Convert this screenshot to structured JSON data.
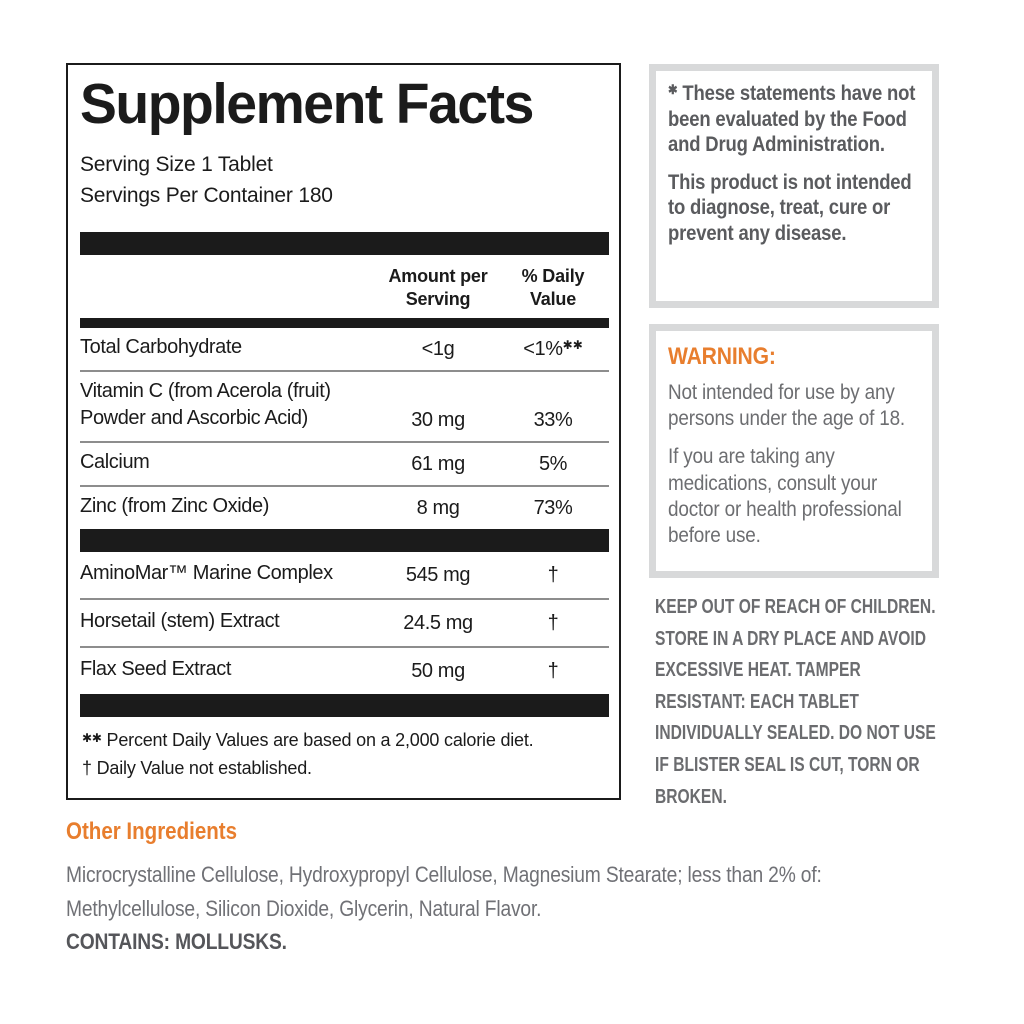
{
  "colors": {
    "accent_orange": "#E87E2E",
    "body_gray": "#6D6E71",
    "bold_gray": "#58595B",
    "table_black": "#1B1B1B",
    "panel_border_gray": "#D8D9DA",
    "row_separator_gray": "#8D8D8D"
  },
  "facts": {
    "title": "Supplement Facts",
    "serving_size": "Serving Size 1 Tablet",
    "servings_per_container": "Servings Per Container 180",
    "headers": {
      "amount": "Amount per Serving",
      "dv": "% Daily Value"
    },
    "rows_top": [
      {
        "name": "Total Carbohydrate",
        "amount": "<1g",
        "dv": "<1%",
        "dv_mark": "✱✱"
      },
      {
        "name": "Vitamin C (from Acerola (fruit) Powder and Ascorbic Acid)",
        "amount": "30 mg",
        "dv": "33%"
      },
      {
        "name": "Calcium",
        "amount": "61 mg",
        "dv": "5%"
      },
      {
        "name": "Zinc (from Zinc Oxide)",
        "amount": "8 mg",
        "dv": "73%"
      }
    ],
    "rows_bottom": [
      {
        "name": "AminoMar™ Marine Complex",
        "amount": "545 mg",
        "dv": "†"
      },
      {
        "name": "Horsetail (stem) Extract",
        "amount": "24.5 mg",
        "dv": "†"
      },
      {
        "name": "Flax Seed Extract",
        "amount": "50 mg",
        "dv": "†"
      }
    ],
    "footnotes": [
      {
        "mark": "✱✱",
        "text": "Percent Daily Values are based on a 2,000 calorie diet."
      },
      {
        "mark": "†",
        "text": "Daily Value not established."
      }
    ]
  },
  "disclaimer": {
    "mark": "✱",
    "paragraphs": [
      "These statements have not been evaluated by the Food and Drug Administration.",
      "This product is not intended to diagnose, treat, cure or prevent any disease."
    ]
  },
  "warning": {
    "heading": "WARNING:",
    "paragraphs": [
      "Not intended for use by any persons under the age of 18.",
      "If you are taking any medications, consult  your doctor or health professional before use."
    ]
  },
  "storage_notice": "KEEP OUT OF REACH OF CHILDREN. STORE IN A DRY PLACE AND AVOID EXCESSIVE HEAT. TAMPER RESISTANT: EACH TABLET INDIVIDUALLY SEALED. DO NOT USE IF BLISTER SEAL IS CUT, TORN OR BROKEN.",
  "other_ingredients": {
    "heading": "Other Ingredients",
    "lines": [
      "Microcrystalline Cellulose, Hydroxypropyl Cellulose, Magnesium Stearate; less than 2% of:",
      "Methylcellulose, Silicon Dioxide, Glycerin, Natural Flavor."
    ],
    "contains": "CONTAINS: MOLLUSKS."
  }
}
